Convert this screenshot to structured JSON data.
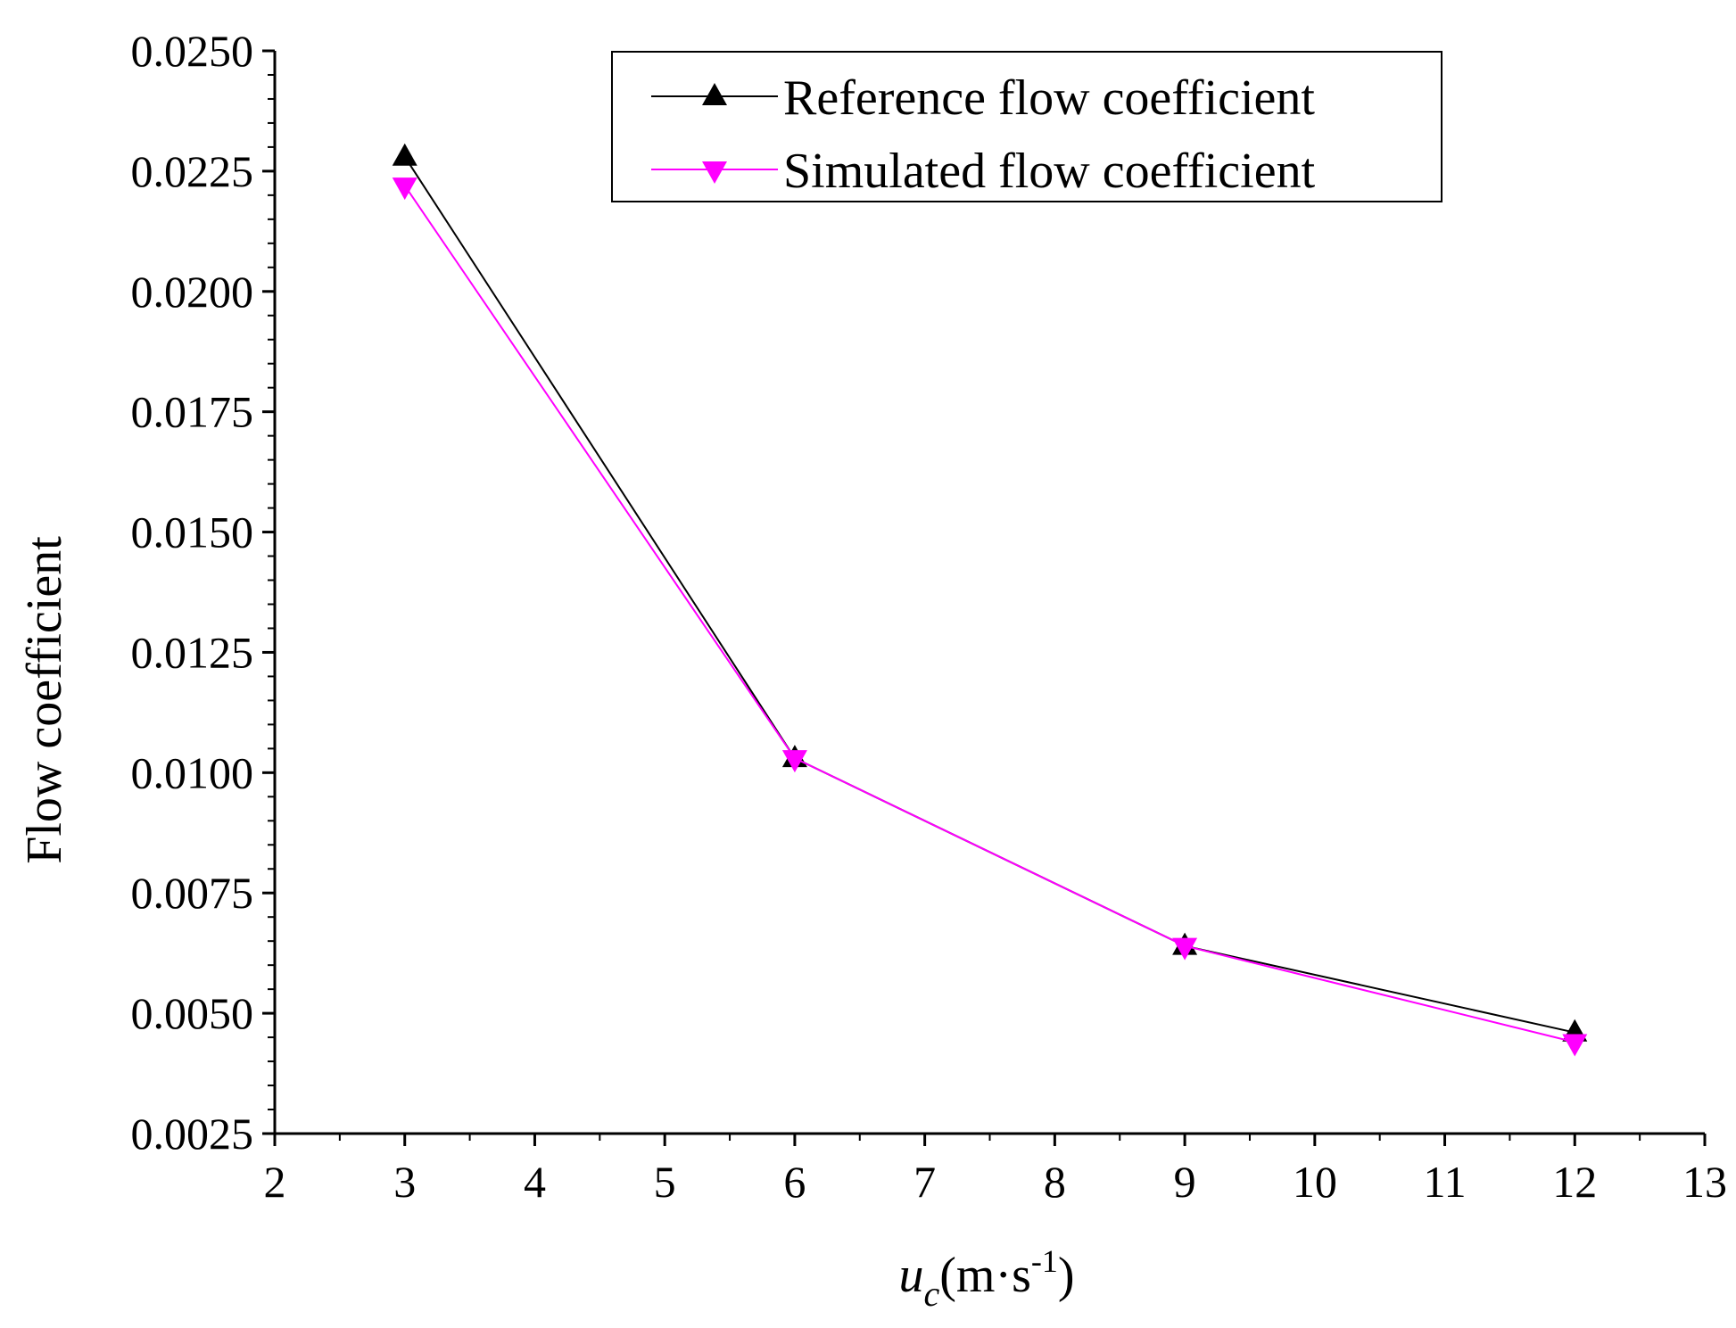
{
  "chart_data": {
    "type": "line",
    "title": "",
    "xlabel": {
      "main": "u",
      "sub": "c",
      "unit_open": "(m·s",
      "sup": "-1",
      "unit_close": ")"
    },
    "ylabel": "Flow coefficient",
    "xlim": [
      2,
      13
    ],
    "ylim": [
      0.0025,
      0.025
    ],
    "xticks": [
      2,
      3,
      4,
      5,
      6,
      7,
      8,
      9,
      10,
      11,
      12,
      13
    ],
    "xtick_labels": [
      "2",
      "3",
      "4",
      "5",
      "6",
      "7",
      "8",
      "9",
      "10",
      "11",
      "12",
      "13"
    ],
    "yticks": [
      0.0025,
      0.005,
      0.0075,
      0.01,
      0.0125,
      0.015,
      0.0175,
      0.02,
      0.0225,
      0.025
    ],
    "ytick_labels": [
      "0.0025",
      "0.0050",
      "0.0075",
      "0.0100",
      "0.0125",
      "0.0150",
      "0.0175",
      "0.0200",
      "0.0225",
      "0.0250"
    ],
    "x": [
      3,
      6,
      9,
      12
    ],
    "series": [
      {
        "name": "Reference flow coefficient",
        "values": [
          0.0228,
          0.0103,
          0.0064,
          0.0046
        ],
        "color": "#000000",
        "marker": "triangle-up"
      },
      {
        "name": "Simulated flow coefficient",
        "values": [
          0.0222,
          0.0103,
          0.0064,
          0.0044
        ],
        "color": "#ff00ff",
        "marker": "triangle-down"
      }
    ],
    "legend": "top-right",
    "grid": false
  }
}
